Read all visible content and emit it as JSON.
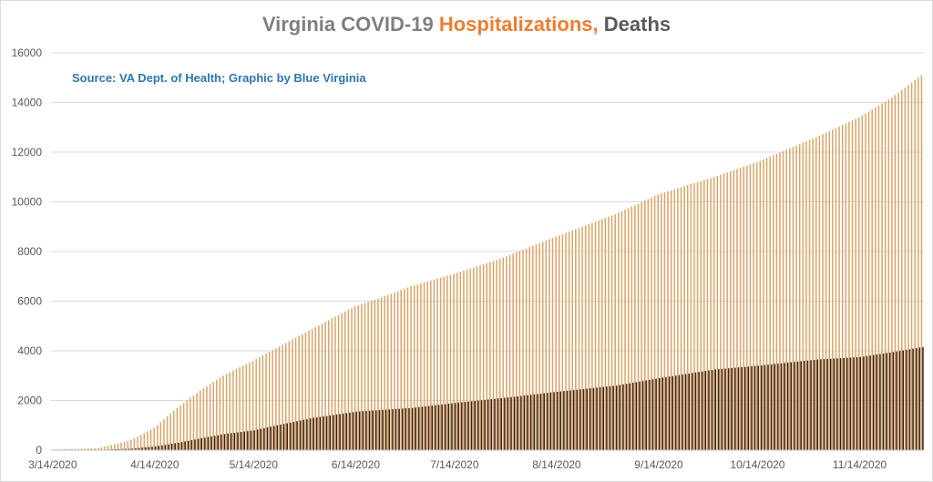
{
  "chart_data": {
    "type": "bar",
    "title": {
      "part1": "Virginia COVID-19 ",
      "part2": "Hospitalizations,",
      "part3": " Deaths"
    },
    "annotation": "Source: VA Dept. of Health; Graphic by Blue Virginia",
    "ylim": [
      0,
      16000
    ],
    "yticks": [
      0,
      2000,
      4000,
      6000,
      8000,
      10000,
      12000,
      14000,
      16000
    ],
    "x_start": "3/14/2020",
    "x_end": "12/3/2020",
    "xtick_labels": [
      "3/14/2020",
      "4/14/2020",
      "5/14/2020",
      "6/14/2020",
      "7/14/2020",
      "8/14/2020",
      "9/14/2020",
      "10/14/2020",
      "11/14/2020"
    ],
    "grid": true,
    "legend": "none",
    "colors": {
      "hospitalizations": "#d9a56a",
      "deaths": "#3b2314",
      "title_gray": "#7f7f7f",
      "title_orange": "#ed7d31",
      "title_dark": "#595959",
      "source_blue": "#2e75b6",
      "grid": "#d9d9d9"
    },
    "series": [
      {
        "key": "hospitalizations",
        "anchors": [
          [
            "3/14/2020",
            20
          ],
          [
            "3/28/2020",
            80
          ],
          [
            "4/7/2020",
            400
          ],
          [
            "4/14/2020",
            900
          ],
          [
            "4/21/2020",
            1700
          ],
          [
            "4/28/2020",
            2400
          ],
          [
            "5/5/2020",
            3000
          ],
          [
            "5/14/2020",
            3600
          ],
          [
            "5/21/2020",
            4100
          ],
          [
            "5/28/2020",
            4600
          ],
          [
            "6/7/2020",
            5300
          ],
          [
            "6/14/2020",
            5800
          ],
          [
            "6/21/2020",
            6100
          ],
          [
            "7/1/2020",
            6600
          ],
          [
            "7/14/2020",
            7100
          ],
          [
            "7/28/2020",
            7700
          ],
          [
            "8/14/2020",
            8600
          ],
          [
            "9/1/2020",
            9500
          ],
          [
            "9/14/2020",
            10300
          ],
          [
            "10/1/2020",
            11000
          ],
          [
            "10/14/2020",
            11600
          ],
          [
            "11/1/2020",
            12600
          ],
          [
            "11/14/2020",
            13400
          ],
          [
            "11/24/2020",
            14200
          ],
          [
            "12/3/2020",
            15100
          ]
        ]
      },
      {
        "key": "deaths",
        "anchors": [
          [
            "3/14/2020",
            0
          ],
          [
            "3/28/2020",
            10
          ],
          [
            "4/7/2020",
            60
          ],
          [
            "4/14/2020",
            150
          ],
          [
            "4/21/2020",
            300
          ],
          [
            "4/28/2020",
            480
          ],
          [
            "5/5/2020",
            650
          ],
          [
            "5/14/2020",
            800
          ],
          [
            "5/21/2020",
            1000
          ],
          [
            "6/1/2020",
            1300
          ],
          [
            "6/14/2020",
            1550
          ],
          [
            "7/1/2020",
            1700
          ],
          [
            "7/14/2020",
            1900
          ],
          [
            "8/1/2020",
            2150
          ],
          [
            "8/14/2020",
            2350
          ],
          [
            "9/1/2020",
            2600
          ],
          [
            "9/14/2020",
            2900
          ],
          [
            "10/1/2020",
            3250
          ],
          [
            "10/14/2020",
            3400
          ],
          [
            "11/1/2020",
            3650
          ],
          [
            "11/14/2020",
            3750
          ],
          [
            "11/24/2020",
            3950
          ],
          [
            "12/3/2020",
            4150
          ]
        ]
      }
    ]
  }
}
